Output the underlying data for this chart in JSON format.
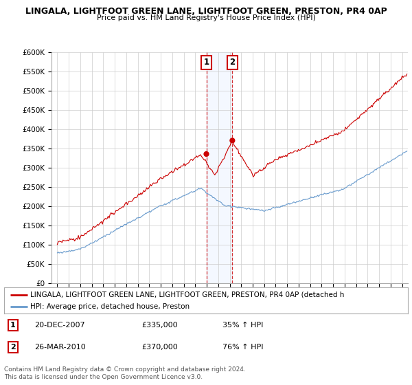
{
  "title1": "LINGALA, LIGHTFOOT GREEN LANE, LIGHTFOOT GREEN, PRESTON, PR4 0AP",
  "title2": "Price paid vs. HM Land Registry's House Price Index (HPI)",
  "ylim": [
    0,
    600000
  ],
  "yticks": [
    0,
    50000,
    100000,
    150000,
    200000,
    250000,
    300000,
    350000,
    400000,
    450000,
    500000,
    550000,
    600000
  ],
  "ytick_labels": [
    "£0",
    "£50K",
    "£100K",
    "£150K",
    "£200K",
    "£250K",
    "£300K",
    "£350K",
    "£400K",
    "£450K",
    "£500K",
    "£550K",
    "£600K"
  ],
  "red_line_label": "LINGALA, LIGHTFOOT GREEN LANE, LIGHTFOOT GREEN, PRESTON, PR4 0AP (detached h",
  "blue_line_label": "HPI: Average price, detached house, Preston",
  "marker1_date": 2007.97,
  "marker1_price": 335000,
  "marker1_label": "1",
  "marker2_date": 2010.23,
  "marker2_price": 370000,
  "marker2_label": "2",
  "footer1": "Contains HM Land Registry data © Crown copyright and database right 2024.",
  "footer2": "This data is licensed under the Open Government Licence v3.0.",
  "red_color": "#cc0000",
  "blue_color": "#6699cc",
  "background_color": "#ffffff",
  "grid_color": "#cccccc",
  "plot_bg_color": "#ffffff"
}
